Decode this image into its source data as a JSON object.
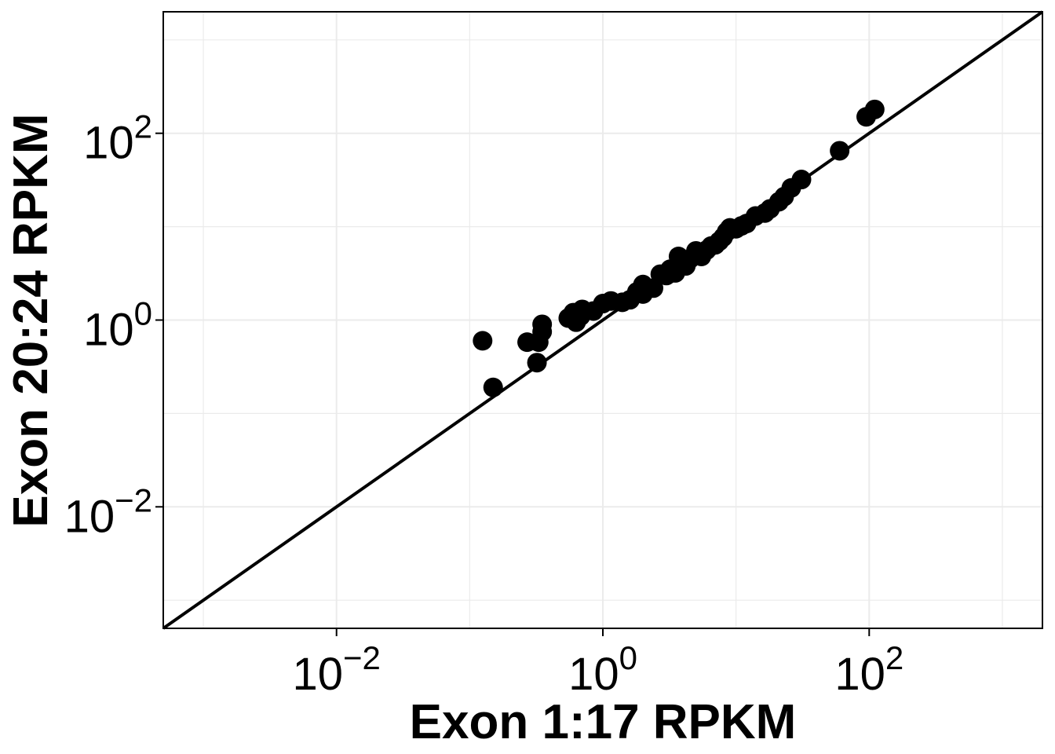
{
  "chart_data": {
    "type": "scatter",
    "title": "",
    "xlabel": "Exon 1:17 RPKM",
    "ylabel": "Exon 20:24 RPKM",
    "x_scale": "log10",
    "y_scale": "log10",
    "xlim": [
      0.0005,
      2000
    ],
    "ylim": [
      0.0005,
      2000
    ],
    "x_ticks": [
      {
        "value": 0.01,
        "base": "10",
        "exp": "−2"
      },
      {
        "value": 1,
        "base": "10",
        "exp": "0"
      },
      {
        "value": 100,
        "base": "10",
        "exp": "2"
      }
    ],
    "y_ticks": [
      {
        "value": 0.01,
        "base": "10",
        "exp": "−2"
      },
      {
        "value": 1,
        "base": "10",
        "exp": "0"
      },
      {
        "value": 100,
        "base": "10",
        "exp": "2"
      }
    ],
    "grid": true,
    "reference_line": {
      "type": "identity",
      "slope": 1,
      "intercept": 0
    },
    "marker_color": "#000000",
    "series": [
      {
        "points": [
          [
            0.125,
            0.6
          ],
          [
            0.15,
            0.19
          ],
          [
            0.27,
            0.58
          ],
          [
            0.32,
            0.35
          ],
          [
            0.33,
            0.58
          ],
          [
            0.35,
            0.75
          ],
          [
            0.35,
            0.9
          ],
          [
            0.55,
            1.05
          ],
          [
            0.6,
            1.2
          ],
          [
            0.63,
            0.95
          ],
          [
            0.68,
            1.1
          ],
          [
            0.7,
            1.3
          ],
          [
            0.85,
            1.25
          ],
          [
            1.0,
            1.5
          ],
          [
            1.15,
            1.6
          ],
          [
            1.4,
            1.55
          ],
          [
            1.6,
            1.65
          ],
          [
            1.8,
            2.0
          ],
          [
            2.0,
            2.4
          ],
          [
            2.0,
            1.9
          ],
          [
            2.4,
            2.2
          ],
          [
            2.7,
            3.1
          ],
          [
            3.0,
            3.0
          ],
          [
            3.2,
            3.5
          ],
          [
            3.5,
            3.2
          ],
          [
            3.7,
            4.8
          ],
          [
            4.2,
            3.8
          ],
          [
            4.5,
            4.5
          ],
          [
            5.0,
            5.5
          ],
          [
            5.5,
            4.8
          ],
          [
            6.0,
            5.6
          ],
          [
            6.5,
            6.2
          ],
          [
            7.0,
            6.4
          ],
          [
            7.5,
            7.0
          ],
          [
            8.0,
            7.7
          ],
          [
            8.5,
            8.8
          ],
          [
            9.0,
            9.7
          ],
          [
            10.0,
            9.5
          ],
          [
            11.0,
            10.2
          ],
          [
            12.0,
            10.8
          ],
          [
            14.0,
            13.0
          ],
          [
            16.5,
            14.0
          ],
          [
            18.0,
            15.5
          ],
          [
            21.0,
            18.5
          ],
          [
            23.0,
            21.0
          ],
          [
            26.0,
            26.0
          ],
          [
            31.0,
            32.0
          ],
          [
            60.0,
            65.0
          ],
          [
            95.0,
            150.0
          ],
          [
            110.0,
            180.0
          ]
        ]
      }
    ]
  }
}
